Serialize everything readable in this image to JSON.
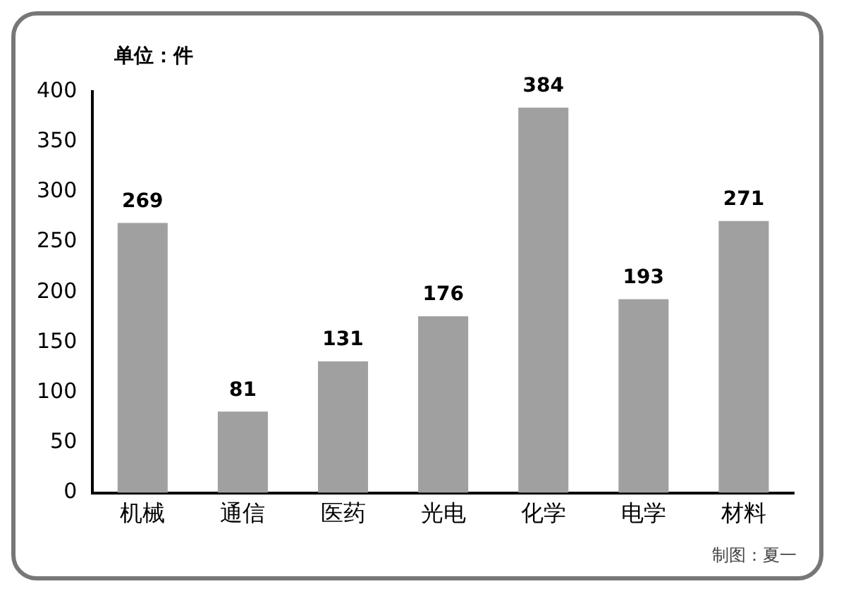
{
  "chart_data": {
    "type": "bar",
    "ylabel": "单位：件",
    "categories": [
      "机械",
      "通信",
      "医药",
      "光电",
      "化学",
      "电学",
      "材料"
    ],
    "values": [
      269,
      81,
      131,
      176,
      384,
      193,
      271
    ],
    "color": "#a0a0a0",
    "ylim": [
      0,
      400
    ],
    "yticks": [
      0,
      50,
      100,
      150,
      200,
      250,
      300,
      350,
      400
    ],
    "grid": false,
    "data_labels": true,
    "annotations": [
      "制图：夏一"
    ]
  }
}
